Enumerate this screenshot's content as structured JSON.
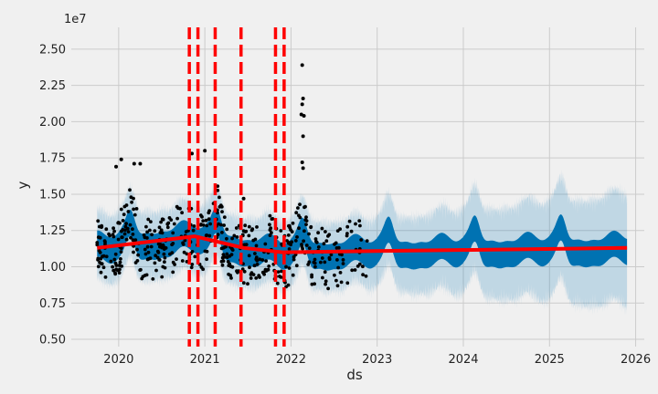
{
  "chart_data": {
    "type": "line",
    "title": "",
    "xlabel": "ds",
    "ylabel": "y",
    "y_scale_label": "1e7",
    "xlim": [
      2019.45,
      2026.1
    ],
    "ylim": [
      0.45,
      2.65
    ],
    "x_ticks": [
      {
        "value": 2020,
        "label": "2020"
      },
      {
        "value": 2021,
        "label": "2021"
      },
      {
        "value": 2022,
        "label": "2022"
      },
      {
        "value": 2023,
        "label": "2023"
      },
      {
        "value": 2024,
        "label": "2024"
      },
      {
        "value": 2025,
        "label": "2025"
      },
      {
        "value": 2026,
        "label": "2026"
      }
    ],
    "y_ticks": [
      {
        "value": 0.5,
        "label": "0.50"
      },
      {
        "value": 0.75,
        "label": "0.75"
      },
      {
        "value": 1.0,
        "label": "1.00"
      },
      {
        "value": 1.25,
        "label": "1.25"
      },
      {
        "value": 1.5,
        "label": "1.50"
      },
      {
        "value": 1.75,
        "label": "1.75"
      },
      {
        "value": 2.0,
        "label": "2.00"
      },
      {
        "value": 2.25,
        "label": "2.25"
      },
      {
        "value": 2.5,
        "label": "2.50"
      }
    ],
    "grid": true,
    "forecast_range": [
      2019.75,
      2025.9
    ],
    "trend": {
      "name": "trend",
      "x": [
        2019.75,
        2020.88,
        2021.45,
        2021.9,
        2025.9
      ],
      "y": [
        1.13,
        1.21,
        1.13,
        1.1,
        1.13
      ]
    },
    "changepoints": [
      2020.82,
      2020.92,
      2021.12,
      2021.42,
      2021.82,
      2021.92
    ],
    "observed": {
      "name": "observed",
      "x_range": [
        2019.75,
        2022.9
      ],
      "spikes": [
        {
          "x": 2022.13,
          "y": 2.39
        },
        {
          "x": 2022.14,
          "y": 2.16
        },
        {
          "x": 2022.13,
          "y": 2.12
        },
        {
          "x": 2022.12,
          "y": 2.05
        },
        {
          "x": 2022.15,
          "y": 2.04
        },
        {
          "x": 2022.14,
          "y": 1.9
        },
        {
          "x": 2022.13,
          "y": 1.72
        },
        {
          "x": 2022.14,
          "y": 1.68
        },
        {
          "x": 2020.03,
          "y": 1.74
        },
        {
          "x": 2019.97,
          "y": 1.69
        },
        {
          "x": 2020.18,
          "y": 1.71
        },
        {
          "x": 2020.25,
          "y": 1.71
        },
        {
          "x": 2021.0,
          "y": 1.8
        },
        {
          "x": 2020.85,
          "y": 1.78
        },
        {
          "x": 2021.45,
          "y": 1.47
        }
      ]
    },
    "colors": {
      "forecast": "#0072B2",
      "interval": "#0072B2",
      "trend": "#ff0000",
      "changepoint": "#ff0000",
      "observed": "#000000",
      "background": "#f0f0f0",
      "grid": "#cbcbcb"
    }
  }
}
